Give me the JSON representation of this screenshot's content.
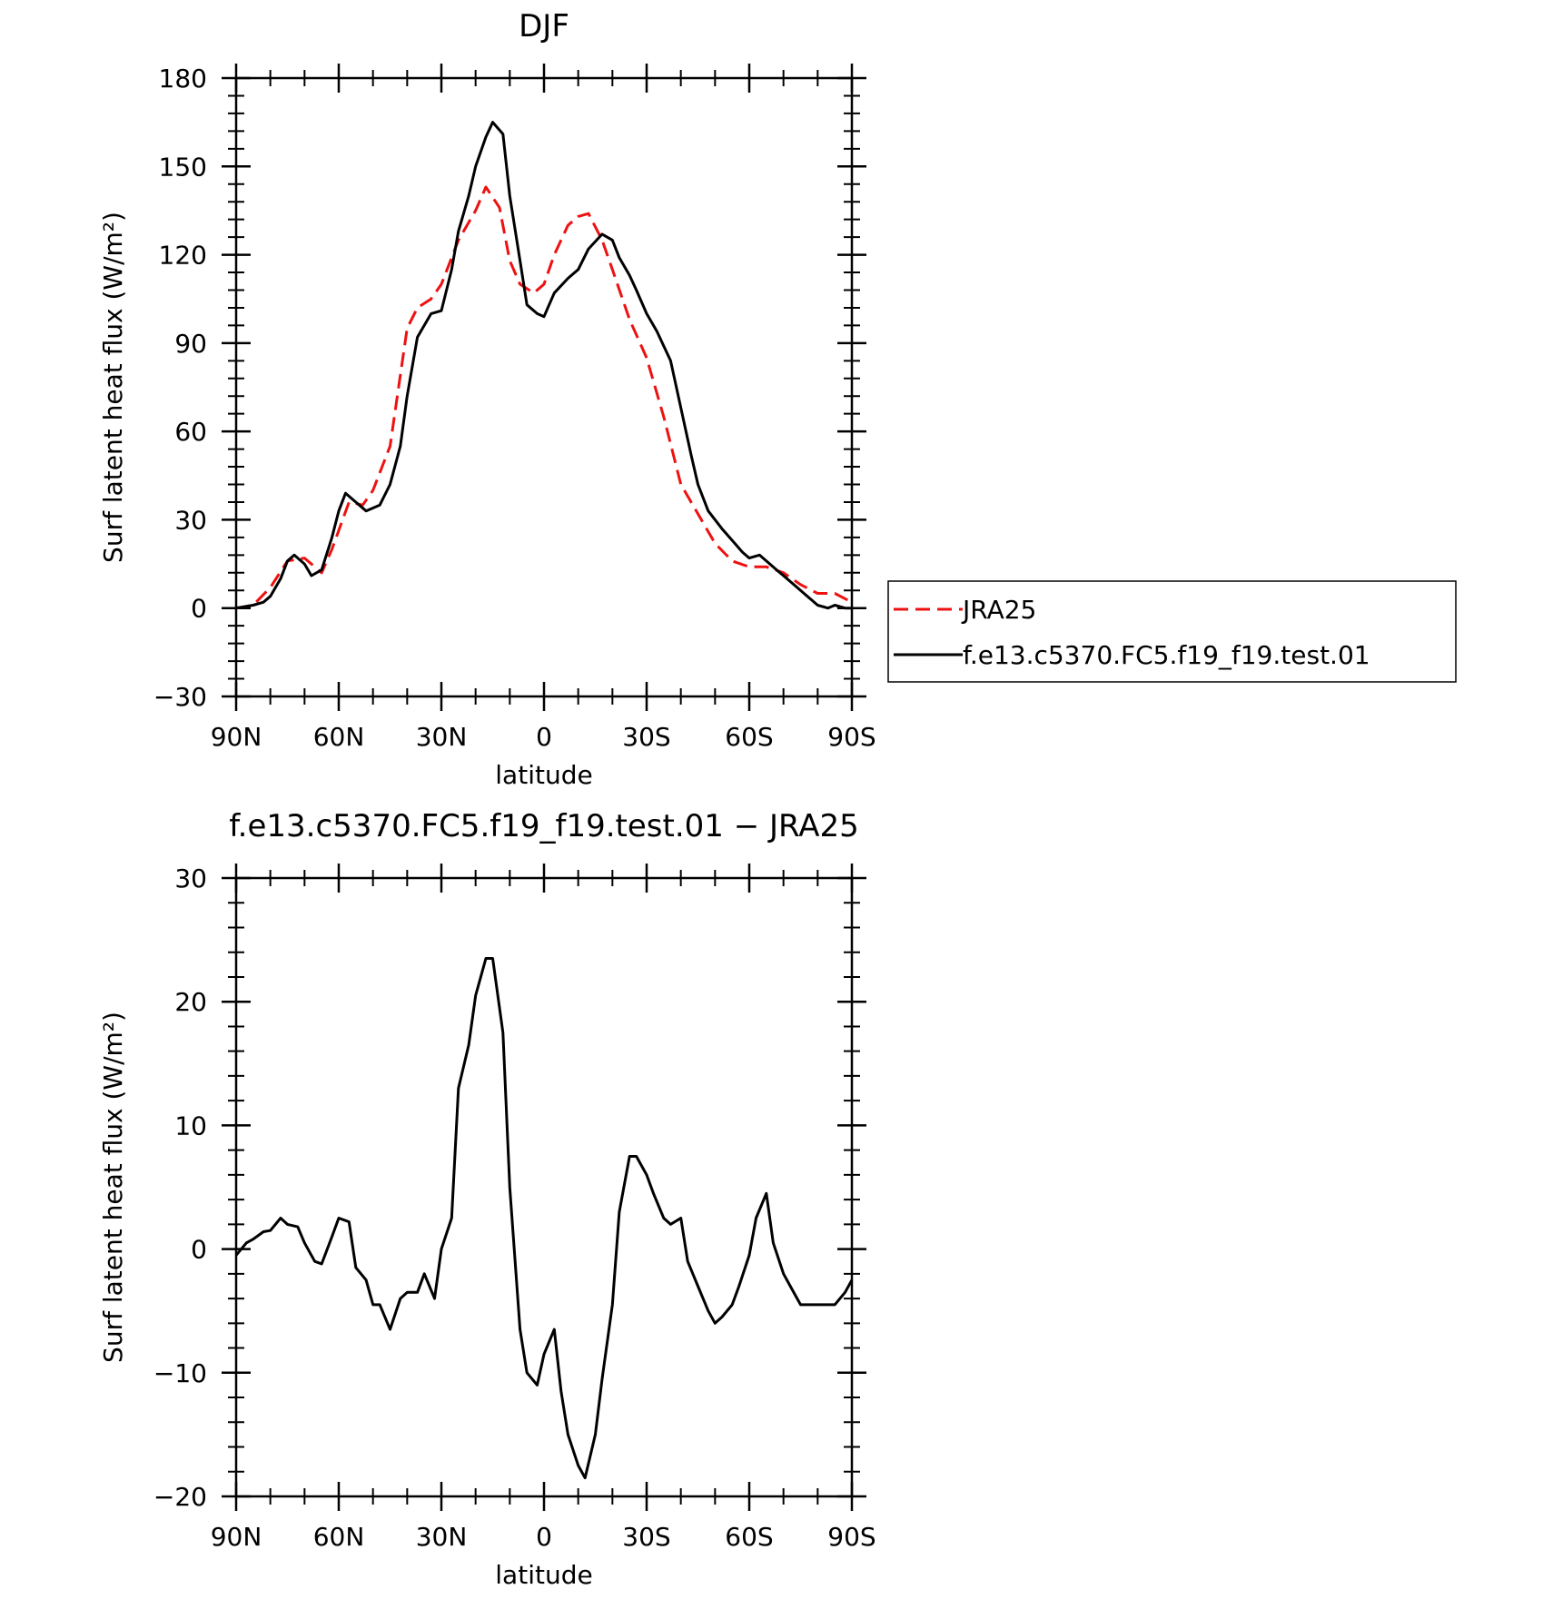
{
  "colors": {
    "model": "#000000",
    "obs": "#ee1111"
  },
  "chart_data": [
    {
      "type": "line",
      "title": "DJF",
      "xlabel": "latitude",
      "ylabel": "Surf latent heat flux (W/m²)",
      "xlim": [
        90,
        -90
      ],
      "ylim": [
        -30,
        180
      ],
      "yticks": [
        -30,
        0,
        30,
        60,
        90,
        120,
        150,
        180
      ],
      "xticks": [
        {
          "value": 90,
          "label": "90N"
        },
        {
          "value": 60,
          "label": "60N"
        },
        {
          "value": 30,
          "label": "30N"
        },
        {
          "value": 0,
          "label": "0"
        },
        {
          "value": -30,
          "label": "30S"
        },
        {
          "value": -60,
          "label": "60S"
        },
        {
          "value": -90,
          "label": "90S"
        }
      ],
      "grid": false,
      "legend": {
        "placement": "right",
        "entries": [
          "JRA25",
          "f.e13.c5370.FC5.f19_f19.test.01"
        ]
      },
      "series": [
        {
          "name": "JRA25",
          "style": "dashed",
          "x": [
            90,
            85,
            80,
            75,
            70,
            65,
            62,
            57,
            53,
            50,
            45,
            40,
            37,
            33,
            30,
            25,
            20,
            17,
            13,
            10,
            7,
            3,
            0,
            -3,
            -7,
            -10,
            -13,
            -17,
            -20,
            -25,
            -30,
            -35,
            -40,
            -45,
            -50,
            -55,
            -60,
            -65,
            -70,
            -75,
            -80,
            -85,
            -90
          ],
          "y": [
            0,
            1,
            7,
            16,
            17,
            12,
            20,
            36,
            35,
            40,
            55,
            95,
            102,
            105,
            110,
            125,
            135,
            143,
            136,
            118,
            110,
            107,
            110,
            120,
            130,
            133,
            134,
            125,
            115,
            98,
            85,
            65,
            42,
            32,
            22,
            16,
            14,
            14,
            12,
            8,
            5,
            5,
            2
          ]
        },
        {
          "name": "f.e13.c5370.FC5.f19_f19.test.01",
          "style": "solid",
          "x": [
            90,
            85,
            82,
            80,
            77,
            75,
            73,
            70,
            68,
            65,
            62,
            60,
            58,
            55,
            52,
            48,
            45,
            42,
            40,
            37,
            33,
            30,
            27,
            25,
            22,
            20,
            17,
            15,
            12,
            10,
            7,
            5,
            2,
            0,
            -3,
            -7,
            -10,
            -13,
            -17,
            -20,
            -22,
            -25,
            -27,
            -30,
            -33,
            -37,
            -40,
            -43,
            -45,
            -48,
            -52,
            -55,
            -58,
            -60,
            -63,
            -65,
            -68,
            -70,
            -73,
            -75,
            -78,
            -80,
            -83,
            -85,
            -88,
            -90
          ],
          "y": [
            0,
            1,
            2,
            4,
            10,
            16,
            18,
            15,
            11,
            13,
            24,
            33,
            39,
            36,
            33,
            35,
            42,
            55,
            72,
            92,
            100,
            101,
            115,
            128,
            140,
            150,
            160,
            165,
            161,
            140,
            118,
            103,
            100,
            99,
            107,
            112,
            115,
            122,
            127,
            125,
            119,
            113,
            108,
            100,
            94,
            84,
            68,
            52,
            42,
            33,
            27,
            23,
            19,
            17,
            18,
            16,
            13,
            11,
            8,
            6,
            3,
            1,
            0,
            1,
            0,
            0
          ]
        }
      ]
    },
    {
      "type": "line",
      "title": "f.e13.c5370.FC5.f19_f19.test.01 − JRA25",
      "xlabel": "latitude",
      "ylabel": "Surf latent heat flux (W/m²)",
      "xlim": [
        90,
        -90
      ],
      "ylim": [
        -20,
        30
      ],
      "yticks": [
        -20,
        -10,
        0,
        10,
        20,
        30
      ],
      "xticks": [
        {
          "value": 90,
          "label": "90N"
        },
        {
          "value": 60,
          "label": "60N"
        },
        {
          "value": 30,
          "label": "30N"
        },
        {
          "value": 0,
          "label": "0"
        },
        {
          "value": -30,
          "label": "30S"
        },
        {
          "value": -60,
          "label": "60S"
        },
        {
          "value": -90,
          "label": "90S"
        }
      ],
      "grid": false,
      "series": [
        {
          "style": "solid",
          "x": [
            90,
            87,
            85,
            82,
            80,
            77,
            75,
            72,
            70,
            67,
            65,
            62,
            60,
            57,
            55,
            52,
            50,
            48,
            45,
            42,
            40,
            37,
            35,
            32,
            30,
            27,
            25,
            22,
            20,
            17,
            15,
            12,
            10,
            7,
            5,
            2,
            0,
            -3,
            -5,
            -7,
            -10,
            -12,
            -15,
            -17,
            -20,
            -22,
            -25,
            -27,
            -30,
            -32,
            -35,
            -37,
            -40,
            -42,
            -45,
            -48,
            -50,
            -52,
            -55,
            -57,
            -60,
            -62,
            -65,
            -67,
            -70,
            -72,
            -75,
            -78,
            -80,
            -83,
            -85,
            -88,
            -90
          ],
          "y": [
            -0.5,
            0.5,
            0.8,
            1.4,
            1.5,
            2.5,
            2.0,
            1.8,
            0.5,
            -1.0,
            -1.2,
            1.0,
            2.5,
            2.2,
            -1.5,
            -2.5,
            -4.5,
            -4.5,
            -6.5,
            -4.0,
            -3.5,
            -3.5,
            -2.0,
            -4.0,
            0.0,
            2.5,
            13.0,
            16.5,
            20.5,
            23.5,
            23.5,
            17.5,
            5.0,
            -6.5,
            -10.0,
            -11.0,
            -8.5,
            -6.5,
            -11.5,
            -15.0,
            -17.5,
            -18.5,
            -15.0,
            -10.5,
            -4.5,
            3.0,
            7.5,
            7.5,
            6.0,
            4.5,
            2.5,
            2.0,
            2.5,
            -1.0,
            -3.0,
            -5.0,
            -6.0,
            -5.5,
            -4.5,
            -3.0,
            -0.5,
            2.5,
            4.5,
            0.5,
            -2.0,
            -3.0,
            -4.5,
            -4.5,
            -4.5,
            -4.5,
            -4.5,
            -3.5,
            -2.5
          ]
        }
      ]
    }
  ]
}
